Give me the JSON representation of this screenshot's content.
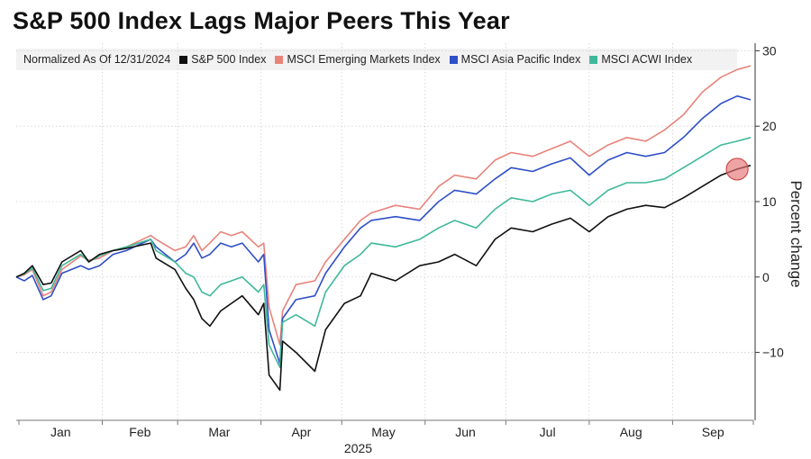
{
  "chart_data": {
    "type": "line",
    "title": "S&P 500 Index Lags Major Peers This Year",
    "note": "Normalized As Of 12/31/2024",
    "ylabel": "Percent change",
    "xlabel": "2025",
    "ylim": [
      -19,
      31
    ],
    "yticks": [
      30,
      20,
      10,
      0,
      -10
    ],
    "months": [
      "Jan",
      "Feb",
      "Mar",
      "Apr",
      "May",
      "Jun",
      "Jul",
      "Aug",
      "Sep"
    ],
    "x_start": "2024-12-31",
    "x_end": "2025-10-01",
    "grid": true,
    "highlight": {
      "date": "2025-09-25",
      "color": "#e57373"
    },
    "series": [
      {
        "name": "S&P 500 Index",
        "color": "#111111",
        "points": [
          [
            "2024-12-31",
            0
          ],
          [
            "2025-01-03",
            0.5
          ],
          [
            "2025-01-06",
            1.5
          ],
          [
            "2025-01-10",
            -1.0
          ],
          [
            "2025-01-13",
            -0.8
          ],
          [
            "2025-01-17",
            2.0
          ],
          [
            "2025-01-24",
            3.5
          ],
          [
            "2025-01-27",
            2.0
          ],
          [
            "2025-01-31",
            3.0
          ],
          [
            "2025-02-05",
            3.5
          ],
          [
            "2025-02-10",
            3.8
          ],
          [
            "2025-02-19",
            4.5
          ],
          [
            "2025-02-21",
            2.5
          ],
          [
            "2025-02-28",
            1.0
          ],
          [
            "2025-03-04",
            -1.5
          ],
          [
            "2025-03-07",
            -3.0
          ],
          [
            "2025-03-10",
            -5.5
          ],
          [
            "2025-03-13",
            -6.5
          ],
          [
            "2025-03-17",
            -4.5
          ],
          [
            "2025-03-21",
            -3.5
          ],
          [
            "2025-03-25",
            -2.5
          ],
          [
            "2025-03-31",
            -5.0
          ],
          [
            "2025-04-02",
            -3.5
          ],
          [
            "2025-04-04",
            -13.0
          ],
          [
            "2025-04-08",
            -15.0
          ],
          [
            "2025-04-09",
            -8.5
          ],
          [
            "2025-04-14",
            -10.0
          ],
          [
            "2025-04-21",
            -12.5
          ],
          [
            "2025-04-25",
            -7.0
          ],
          [
            "2025-05-02",
            -3.5
          ],
          [
            "2025-05-08",
            -2.5
          ],
          [
            "2025-05-12",
            0.5
          ],
          [
            "2025-05-21",
            -0.5
          ],
          [
            "2025-05-30",
            1.5
          ],
          [
            "2025-06-06",
            2.0
          ],
          [
            "2025-06-12",
            3.0
          ],
          [
            "2025-06-20",
            1.5
          ],
          [
            "2025-06-27",
            5.0
          ],
          [
            "2025-07-03",
            6.5
          ],
          [
            "2025-07-11",
            6.0
          ],
          [
            "2025-07-18",
            7.0
          ],
          [
            "2025-07-25",
            7.8
          ],
          [
            "2025-08-01",
            6.0
          ],
          [
            "2025-08-08",
            8.0
          ],
          [
            "2025-08-15",
            9.0
          ],
          [
            "2025-08-22",
            9.5
          ],
          [
            "2025-08-29",
            9.2
          ],
          [
            "2025-09-05",
            10.5
          ],
          [
            "2025-09-12",
            12.0
          ],
          [
            "2025-09-19",
            13.5
          ],
          [
            "2025-09-25",
            14.3
          ],
          [
            "2025-09-30",
            14.8
          ]
        ]
      },
      {
        "name": "MSCI Emerging Markets Index",
        "color": "#e8837a",
        "points": [
          [
            "2024-12-31",
            0
          ],
          [
            "2025-01-03",
            0.3
          ],
          [
            "2025-01-06",
            1.0
          ],
          [
            "2025-01-10",
            -2.5
          ],
          [
            "2025-01-13",
            -2.0
          ],
          [
            "2025-01-17",
            1.0
          ],
          [
            "2025-01-24",
            2.8
          ],
          [
            "2025-01-27",
            2.2
          ],
          [
            "2025-01-31",
            2.5
          ],
          [
            "2025-02-05",
            3.5
          ],
          [
            "2025-02-10",
            4.0
          ],
          [
            "2025-02-19",
            5.5
          ],
          [
            "2025-02-21",
            5.0
          ],
          [
            "2025-02-28",
            3.5
          ],
          [
            "2025-03-04",
            4.0
          ],
          [
            "2025-03-07",
            5.5
          ],
          [
            "2025-03-10",
            3.5
          ],
          [
            "2025-03-13",
            4.5
          ],
          [
            "2025-03-17",
            6.0
          ],
          [
            "2025-03-21",
            5.5
          ],
          [
            "2025-03-25",
            6.0
          ],
          [
            "2025-03-31",
            4.0
          ],
          [
            "2025-04-02",
            4.5
          ],
          [
            "2025-04-04",
            -4.0
          ],
          [
            "2025-04-08",
            -9.0
          ],
          [
            "2025-04-09",
            -4.5
          ],
          [
            "2025-04-14",
            -1.0
          ],
          [
            "2025-04-21",
            -0.5
          ],
          [
            "2025-04-25",
            2.0
          ],
          [
            "2025-05-02",
            5.0
          ],
          [
            "2025-05-08",
            7.5
          ],
          [
            "2025-05-12",
            8.5
          ],
          [
            "2025-05-21",
            9.5
          ],
          [
            "2025-05-30",
            9.0
          ],
          [
            "2025-06-06",
            12.0
          ],
          [
            "2025-06-12",
            13.5
          ],
          [
            "2025-06-20",
            13.0
          ],
          [
            "2025-06-27",
            15.5
          ],
          [
            "2025-07-03",
            16.5
          ],
          [
            "2025-07-11",
            16.0
          ],
          [
            "2025-07-18",
            17.0
          ],
          [
            "2025-07-25",
            18.0
          ],
          [
            "2025-08-01",
            16.0
          ],
          [
            "2025-08-08",
            17.5
          ],
          [
            "2025-08-15",
            18.5
          ],
          [
            "2025-08-22",
            18.0
          ],
          [
            "2025-08-29",
            19.5
          ],
          [
            "2025-09-05",
            21.5
          ],
          [
            "2025-09-12",
            24.5
          ],
          [
            "2025-09-19",
            26.5
          ],
          [
            "2025-09-25",
            27.5
          ],
          [
            "2025-09-30",
            28.0
          ]
        ]
      },
      {
        "name": "MSCI Asia Pacific Index",
        "color": "#2f4fc8",
        "points": [
          [
            "2024-12-31",
            0
          ],
          [
            "2025-01-03",
            -0.5
          ],
          [
            "2025-01-06",
            0.2
          ],
          [
            "2025-01-10",
            -3.0
          ],
          [
            "2025-01-13",
            -2.5
          ],
          [
            "2025-01-17",
            0.5
          ],
          [
            "2025-01-24",
            1.5
          ],
          [
            "2025-01-27",
            1.0
          ],
          [
            "2025-01-31",
            1.5
          ],
          [
            "2025-02-05",
            3.0
          ],
          [
            "2025-02-10",
            3.5
          ],
          [
            "2025-02-19",
            5.0
          ],
          [
            "2025-02-21",
            4.0
          ],
          [
            "2025-02-28",
            2.0
          ],
          [
            "2025-03-04",
            3.0
          ],
          [
            "2025-03-07",
            4.5
          ],
          [
            "2025-03-10",
            2.5
          ],
          [
            "2025-03-13",
            3.0
          ],
          [
            "2025-03-17",
            4.5
          ],
          [
            "2025-03-21",
            4.0
          ],
          [
            "2025-03-25",
            4.5
          ],
          [
            "2025-03-31",
            2.0
          ],
          [
            "2025-04-02",
            3.0
          ],
          [
            "2025-04-04",
            -7.0
          ],
          [
            "2025-04-08",
            -11.5
          ],
          [
            "2025-04-09",
            -5.5
          ],
          [
            "2025-04-14",
            -3.0
          ],
          [
            "2025-04-21",
            -2.5
          ],
          [
            "2025-04-25",
            0.5
          ],
          [
            "2025-05-02",
            4.0
          ],
          [
            "2025-05-08",
            6.5
          ],
          [
            "2025-05-12",
            7.5
          ],
          [
            "2025-05-21",
            8.0
          ],
          [
            "2025-05-30",
            7.5
          ],
          [
            "2025-06-06",
            10.0
          ],
          [
            "2025-06-12",
            11.5
          ],
          [
            "2025-06-20",
            11.0
          ],
          [
            "2025-06-27",
            13.0
          ],
          [
            "2025-07-03",
            14.5
          ],
          [
            "2025-07-11",
            14.0
          ],
          [
            "2025-07-18",
            15.0
          ],
          [
            "2025-07-25",
            15.8
          ],
          [
            "2025-08-01",
            13.5
          ],
          [
            "2025-08-08",
            15.5
          ],
          [
            "2025-08-15",
            16.5
          ],
          [
            "2025-08-22",
            16.0
          ],
          [
            "2025-08-29",
            16.5
          ],
          [
            "2025-09-05",
            18.5
          ],
          [
            "2025-09-12",
            21.0
          ],
          [
            "2025-09-19",
            23.0
          ],
          [
            "2025-09-25",
            24.0
          ],
          [
            "2025-09-30",
            23.5
          ]
        ]
      },
      {
        "name": "MSCI ACWI Index",
        "color": "#3fb99a",
        "points": [
          [
            "2024-12-31",
            0
          ],
          [
            "2025-01-03",
            0.4
          ],
          [
            "2025-01-06",
            1.2
          ],
          [
            "2025-01-10",
            -1.8
          ],
          [
            "2025-01-13",
            -1.5
          ],
          [
            "2025-01-17",
            1.5
          ],
          [
            "2025-01-24",
            3.0
          ],
          [
            "2025-01-27",
            2.0
          ],
          [
            "2025-01-31",
            2.8
          ],
          [
            "2025-02-05",
            3.5
          ],
          [
            "2025-02-10",
            4.0
          ],
          [
            "2025-02-19",
            5.0
          ],
          [
            "2025-02-21",
            3.5
          ],
          [
            "2025-02-28",
            2.0
          ],
          [
            "2025-03-04",
            0.5
          ],
          [
            "2025-03-07",
            0.0
          ],
          [
            "2025-03-10",
            -2.0
          ],
          [
            "2025-03-13",
            -2.5
          ],
          [
            "2025-03-17",
            -1.0
          ],
          [
            "2025-03-21",
            -0.5
          ],
          [
            "2025-03-25",
            0.0
          ],
          [
            "2025-03-31",
            -2.0
          ],
          [
            "2025-04-02",
            -1.0
          ],
          [
            "2025-04-04",
            -9.0
          ],
          [
            "2025-04-08",
            -12.0
          ],
          [
            "2025-04-09",
            -6.0
          ],
          [
            "2025-04-14",
            -5.0
          ],
          [
            "2025-04-21",
            -6.5
          ],
          [
            "2025-04-25",
            -2.0
          ],
          [
            "2025-05-02",
            1.5
          ],
          [
            "2025-05-08",
            3.0
          ],
          [
            "2025-05-12",
            4.5
          ],
          [
            "2025-05-21",
            4.0
          ],
          [
            "2025-05-30",
            5.0
          ],
          [
            "2025-06-06",
            6.5
          ],
          [
            "2025-06-12",
            7.5
          ],
          [
            "2025-06-20",
            6.5
          ],
          [
            "2025-06-27",
            9.0
          ],
          [
            "2025-07-03",
            10.5
          ],
          [
            "2025-07-11",
            10.0
          ],
          [
            "2025-07-18",
            11.0
          ],
          [
            "2025-07-25",
            11.5
          ],
          [
            "2025-08-01",
            9.5
          ],
          [
            "2025-08-08",
            11.5
          ],
          [
            "2025-08-15",
            12.5
          ],
          [
            "2025-08-22",
            12.5
          ],
          [
            "2025-08-29",
            13.0
          ],
          [
            "2025-09-05",
            14.5
          ],
          [
            "2025-09-12",
            16.0
          ],
          [
            "2025-09-19",
            17.5
          ],
          [
            "2025-09-25",
            18.0
          ],
          [
            "2025-09-30",
            18.5
          ]
        ]
      }
    ]
  }
}
